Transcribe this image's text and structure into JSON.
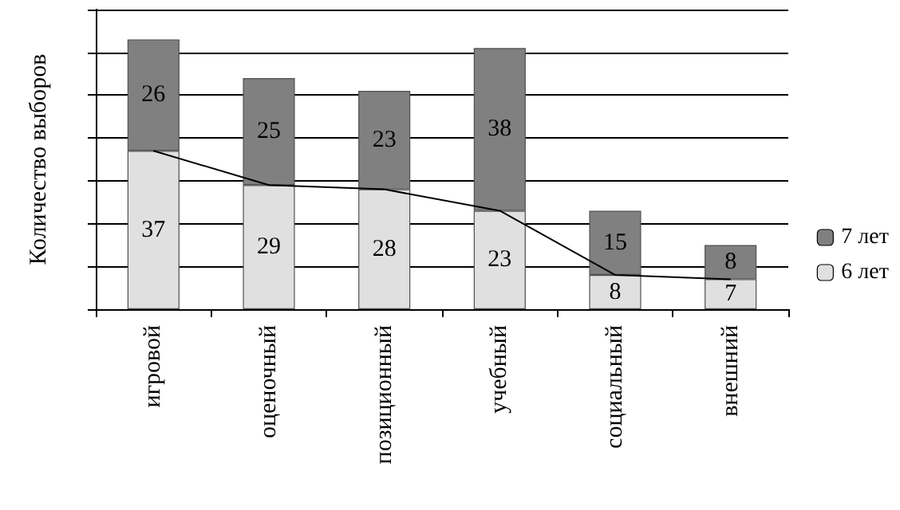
{
  "chart_data": {
    "type": "bar",
    "stacked": true,
    "ylabel": "Количество выборов",
    "categories": [
      "игровой",
      "оценочный",
      "позиционный",
      "учебный",
      "социальный",
      "внешний"
    ],
    "series": [
      {
        "name": "6 лет",
        "color": "#e0e0e0",
        "values": [
          37,
          29,
          28,
          23,
          8,
          7
        ],
        "value_labels": [
          "37",
          "29",
          "28",
          "23",
          "8",
          "7"
        ]
      },
      {
        "name": "7 лет",
        "color": "#808080",
        "values": [
          26,
          25,
          23,
          38,
          15,
          8
        ],
        "value_labels": [
          "26",
          "25",
          "23",
          "38",
          "15",
          "8"
        ]
      },
      {
        "type": "line",
        "color": "#000000",
        "values": [
          37,
          29,
          28,
          23,
          8,
          7
        ]
      }
    ],
    "tick_labels": "x",
    "grid": "y",
    "legend": "right",
    "marker": "none"
  }
}
